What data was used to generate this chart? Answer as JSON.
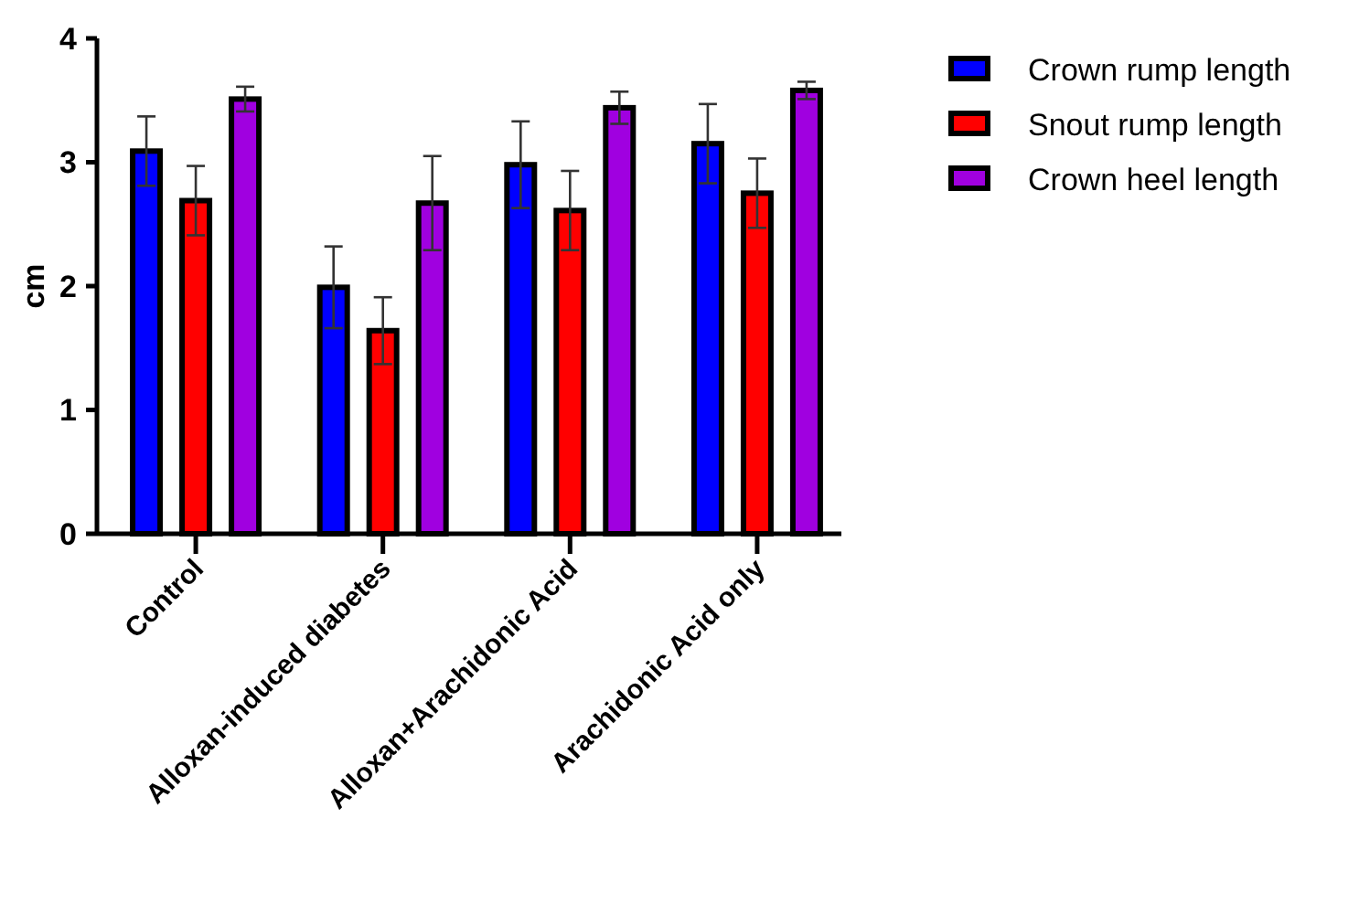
{
  "chart_data": {
    "type": "bar",
    "ylabel": "cm",
    "categories": [
      "Control",
      "Alloxan-induced diabetes",
      "Alloxan+Arachidonic Acid",
      "Arachidonic Acid only"
    ],
    "series": [
      {
        "name": "Crown rump length",
        "color": "#0000ff",
        "values": [
          3.09,
          1.99,
          2.98,
          3.15
        ],
        "errors": [
          0.28,
          0.33,
          0.35,
          0.32
        ]
      },
      {
        "name": "Snout rump length",
        "color": "#ff0000",
        "values": [
          2.69,
          1.64,
          2.61,
          2.75
        ],
        "errors": [
          0.28,
          0.27,
          0.32,
          0.28
        ]
      },
      {
        "name": "Crown heel length",
        "color": "#a000e0",
        "values": [
          3.51,
          2.67,
          3.44,
          3.58
        ],
        "errors": [
          0.1,
          0.38,
          0.13,
          0.07
        ]
      }
    ],
    "ylim": [
      0,
      4
    ],
    "yticks": [
      0,
      1,
      2,
      3,
      4
    ],
    "grid": false,
    "legend": "top right"
  }
}
